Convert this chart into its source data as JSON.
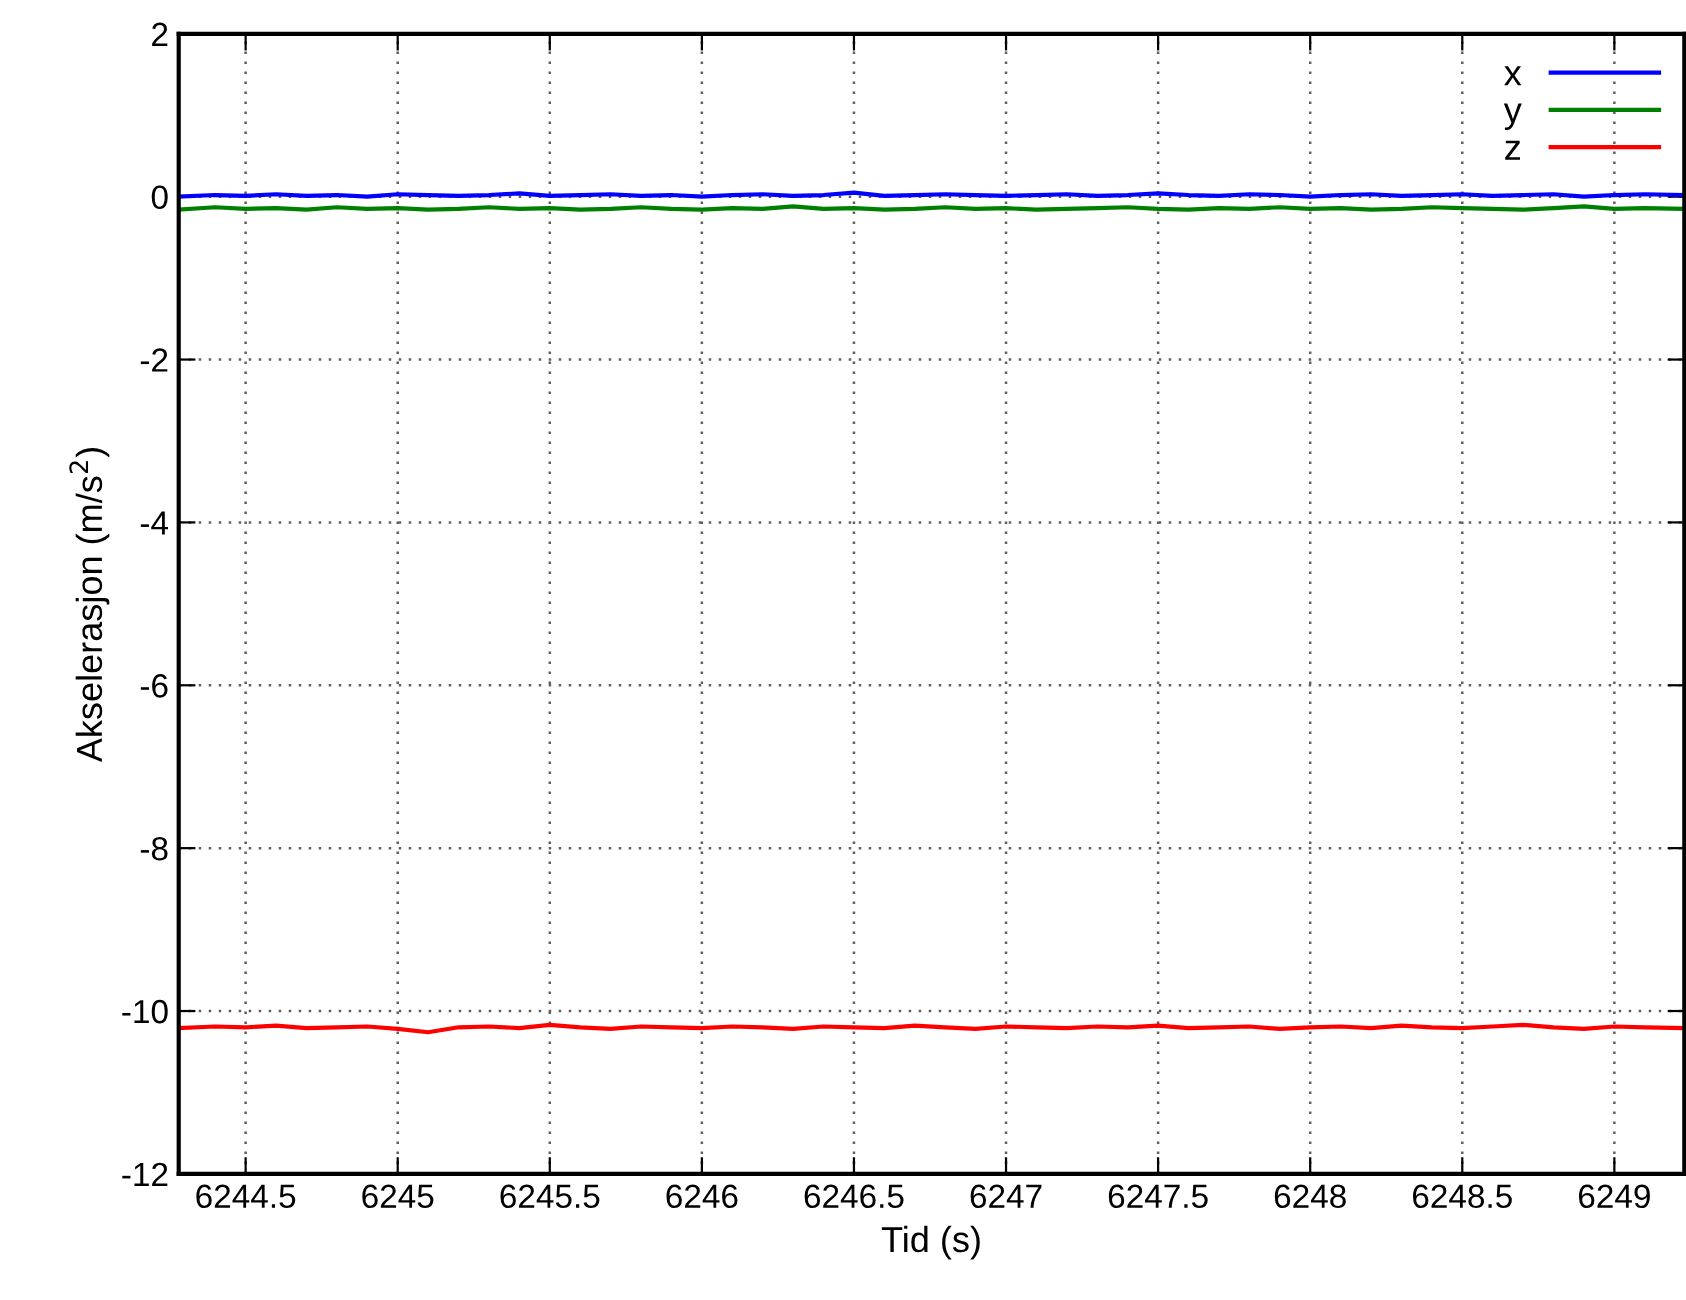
{
  "chart_data": {
    "type": "line",
    "xlabel": "Tid (s)",
    "ylabel": "Akselerasjon (m/s$^{2}$)",
    "x": [
      6244.28,
      6244.4,
      6244.5,
      6244.6,
      6244.7,
      6244.8,
      6244.9,
      6245.0,
      6245.1,
      6245.2,
      6245.3,
      6245.4,
      6245.5,
      6245.6,
      6245.7,
      6245.8,
      6245.9,
      6246.0,
      6246.1,
      6246.2,
      6246.3,
      6246.4,
      6246.5,
      6246.6,
      6246.7,
      6246.8,
      6246.9,
      6247.0,
      6247.1,
      6247.2,
      6247.3,
      6247.4,
      6247.5,
      6247.6,
      6247.7,
      6247.8,
      6247.9,
      6248.0,
      6248.1,
      6248.2,
      6248.3,
      6248.4,
      6248.5,
      6248.6,
      6248.7,
      6248.8,
      6248.9,
      6249.0,
      6249.1,
      6249.23
    ],
    "series": [
      {
        "name": "x",
        "color": "#0000ff",
        "values": [
          0.0,
          0.02,
          0.01,
          0.03,
          0.01,
          0.02,
          0.0,
          0.03,
          0.02,
          0.01,
          0.02,
          0.04,
          0.01,
          0.02,
          0.03,
          0.01,
          0.02,
          0.0,
          0.02,
          0.03,
          0.01,
          0.02,
          0.05,
          0.01,
          0.02,
          0.03,
          0.02,
          0.01,
          0.02,
          0.03,
          0.01,
          0.02,
          0.04,
          0.02,
          0.01,
          0.03,
          0.02,
          0.0,
          0.02,
          0.03,
          0.01,
          0.02,
          0.03,
          0.01,
          0.02,
          0.03,
          0.0,
          0.02,
          0.03,
          0.02
        ]
      },
      {
        "name": "y",
        "color": "#008000",
        "values": [
          -0.16,
          -0.13,
          -0.15,
          -0.14,
          -0.16,
          -0.13,
          -0.15,
          -0.14,
          -0.16,
          -0.15,
          -0.13,
          -0.15,
          -0.14,
          -0.16,
          -0.15,
          -0.13,
          -0.15,
          -0.16,
          -0.14,
          -0.15,
          -0.12,
          -0.15,
          -0.14,
          -0.16,
          -0.15,
          -0.13,
          -0.15,
          -0.14,
          -0.16,
          -0.15,
          -0.14,
          -0.13,
          -0.15,
          -0.16,
          -0.14,
          -0.15,
          -0.13,
          -0.15,
          -0.14,
          -0.16,
          -0.15,
          -0.13,
          -0.14,
          -0.15,
          -0.16,
          -0.14,
          -0.12,
          -0.15,
          -0.14,
          -0.15
        ]
      },
      {
        "name": "z",
        "color": "#ff0000",
        "values": [
          -10.21,
          -10.19,
          -10.2,
          -10.18,
          -10.21,
          -10.2,
          -10.19,
          -10.22,
          -10.26,
          -10.2,
          -10.19,
          -10.21,
          -10.17,
          -10.2,
          -10.22,
          -10.19,
          -10.2,
          -10.21,
          -10.19,
          -10.2,
          -10.22,
          -10.19,
          -10.2,
          -10.21,
          -10.18,
          -10.2,
          -10.22,
          -10.19,
          -10.2,
          -10.21,
          -10.19,
          -10.2,
          -10.18,
          -10.21,
          -10.2,
          -10.19,
          -10.22,
          -10.2,
          -10.19,
          -10.21,
          -10.18,
          -10.2,
          -10.21,
          -10.19,
          -10.17,
          -10.2,
          -10.22,
          -10.19,
          -10.2,
          -10.21
        ]
      }
    ],
    "xlim": [
      6244.28,
      6249.23
    ],
    "ylim": [
      -12,
      2
    ],
    "xticks": [
      6244.5,
      6245,
      6245.5,
      6246,
      6246.5,
      6247,
      6247.5,
      6248,
      6248.5,
      6249
    ],
    "yticks": [
      -12,
      -10,
      -8,
      -6,
      -4,
      -2,
      0,
      2
    ],
    "grid": true,
    "legend": "top right",
    "line_style": "solid",
    "marker": "none"
  }
}
